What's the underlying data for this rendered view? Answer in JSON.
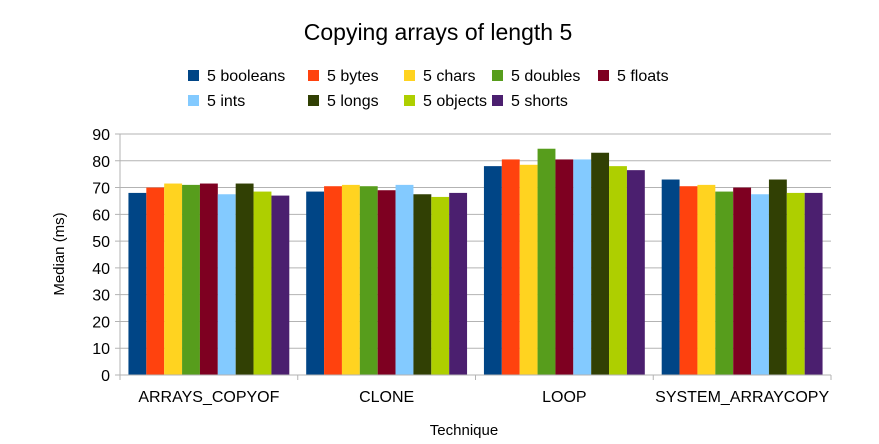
{
  "chart_data": {
    "type": "bar",
    "title": "Copying arrays of length 5",
    "xlabel": "Technique",
    "ylabel": "Median (ms)",
    "ylim": [
      0,
      90
    ],
    "yticks": [
      0,
      10,
      20,
      30,
      40,
      50,
      60,
      70,
      80,
      90
    ],
    "grid": "horizontal",
    "legend_position": "top",
    "categories": [
      "ARRAYS_COPYOF",
      "CLONE",
      "LOOP",
      "SYSTEM_ARRAYCOPY"
    ],
    "series": [
      {
        "name": "5 booleans",
        "color": "#004586",
        "values": [
          68,
          68.5,
          78,
          73
        ]
      },
      {
        "name": "5 bytes",
        "color": "#ff420e",
        "values": [
          70,
          70.5,
          80.5,
          70.5
        ]
      },
      {
        "name": "5 chars",
        "color": "#ffd320",
        "values": [
          71.5,
          71,
          78.5,
          71
        ]
      },
      {
        "name": "5 doubles",
        "color": "#579d1c",
        "values": [
          71,
          70.5,
          84.5,
          68.5
        ]
      },
      {
        "name": "5 floats",
        "color": "#7e0021",
        "values": [
          71.5,
          69,
          80.5,
          70
        ]
      },
      {
        "name": "5 ints",
        "color": "#83caff",
        "values": [
          67.5,
          71,
          80.5,
          67.5
        ]
      },
      {
        "name": "5 longs",
        "color": "#314004",
        "values": [
          71.5,
          67.5,
          83,
          73
        ]
      },
      {
        "name": "5 objects",
        "color": "#aecf00",
        "values": [
          68.5,
          66.5,
          78,
          68
        ]
      },
      {
        "name": "5 shorts",
        "color": "#4b1f6f",
        "values": [
          67,
          68,
          76.5,
          68
        ]
      }
    ]
  }
}
